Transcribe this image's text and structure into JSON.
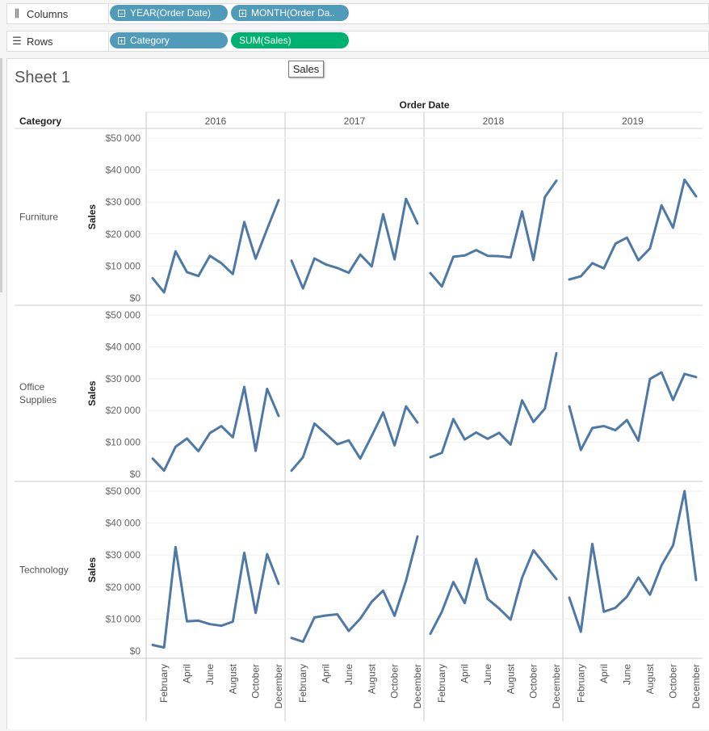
{
  "shelves": {
    "columns": {
      "label": "Columns",
      "icon": "columns-icon",
      "pills": [
        {
          "pm": "⊟",
          "label": "YEAR(Order Date)"
        },
        {
          "pm": "⊞",
          "label": "MONTH(Order Da.."
        }
      ]
    },
    "rows": {
      "label": "Rows",
      "icon": "rows-icon",
      "pills": [
        {
          "pm": "⊞",
          "label": "Category"
        },
        {
          "label": "SUM(Sales)"
        }
      ]
    }
  },
  "tooltip": "Sales",
  "sheet_title": "Sheet 1",
  "colors": {
    "line": "#4e79a7",
    "dimension_pill": "#4f9bb9",
    "measure_pill": "#00b26f"
  },
  "chart_data": {
    "type": "line",
    "column_header": "Order Date",
    "row_header": "Category",
    "ylabel": "Sales",
    "ylim": [
      0,
      50000
    ],
    "yticks": [
      "$0",
      "$10 000",
      "$20 000",
      "$30 000",
      "$40 000",
      "$50 000"
    ],
    "years": [
      "2016",
      "2017",
      "2018",
      "2019"
    ],
    "xtick_labels": [
      "February",
      "April",
      "June",
      "August",
      "October",
      "December"
    ],
    "grid": true,
    "rows": [
      {
        "category": "Furniture",
        "values": [
          [
            6200,
            1800,
            14600,
            8100,
            6900,
            13200,
            10900,
            7500,
            23800,
            12300,
            21600,
            30600
          ],
          [
            11700,
            3000,
            12400,
            10500,
            9400,
            7900,
            13600,
            9900,
            26200,
            12100,
            31000,
            23300
          ],
          [
            7800,
            3600,
            12900,
            13300,
            15000,
            13200,
            13100,
            12700,
            27100,
            11900,
            31600,
            36700
          ],
          [
            5800,
            6800,
            10900,
            9300,
            17000,
            18900,
            11800,
            15500,
            29000,
            22000,
            37000,
            31800
          ]
        ]
      },
      {
        "category": "Office Supplies",
        "values": [
          [
            4900,
            1100,
            8600,
            11200,
            7200,
            12900,
            15100,
            11600,
            27400,
            7300,
            26800,
            18300
          ],
          [
            1100,
            5300,
            15900,
            12700,
            9400,
            10600,
            4900,
            12000,
            19400,
            9000,
            21300,
            16200
          ],
          [
            5300,
            6700,
            17300,
            10900,
            13100,
            11100,
            13000,
            9300,
            23200,
            16400,
            20600,
            38000
          ],
          [
            21300,
            7600,
            14500,
            15100,
            13800,
            17000,
            10500,
            29900,
            32000,
            23300,
            31500,
            30500
          ]
        ]
      },
      {
        "category": "Technology",
        "values": [
          [
            1900,
            1100,
            32500,
            9300,
            9500,
            8400,
            7900,
            9200,
            30700,
            11900,
            30300,
            21000
          ],
          [
            4100,
            2900,
            10500,
            11100,
            11500,
            6300,
            10100,
            15400,
            18900,
            11000,
            22000,
            35800
          ],
          [
            5400,
            12300,
            21600,
            15000,
            28800,
            16300,
            13300,
            9800,
            22900,
            31500,
            27000,
            22500
          ],
          [
            16700,
            6000,
            33500,
            12300,
            13500,
            17000,
            23000,
            17600,
            26800,
            33000,
            50000,
            22200
          ]
        ]
      }
    ]
  }
}
